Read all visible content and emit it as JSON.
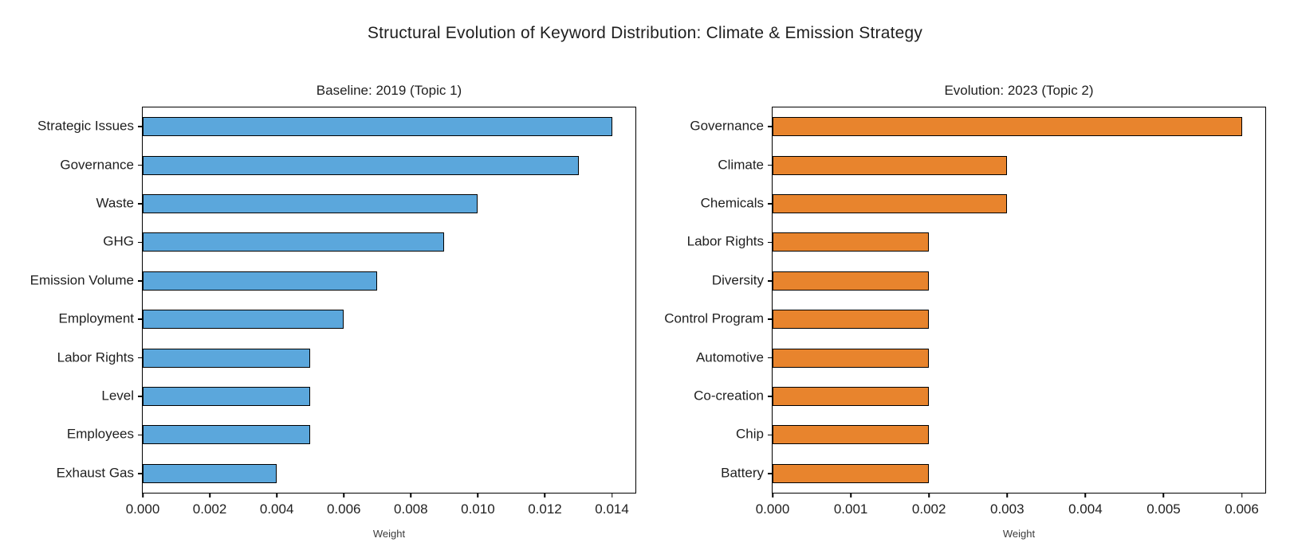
{
  "page_title": "Structural Evolution of Keyword Distribution: Climate & Emission Strategy",
  "chart_data": [
    {
      "type": "bar",
      "orientation": "horizontal",
      "title": "Baseline: 2019 (Topic 1)",
      "categories": [
        "Strategic Issues",
        "Governance",
        "Waste",
        "GHG",
        "Emission Volume",
        "Employment",
        "Labor Rights",
        "Level",
        "Employees",
        "Exhaust Gas"
      ],
      "values": [
        0.014,
        0.013,
        0.01,
        0.009,
        0.007,
        0.006,
        0.005,
        0.005,
        0.005,
        0.004
      ],
      "xlabel": "Weight",
      "xlim": [
        0,
        0.0147
      ],
      "xticks": [
        0,
        0.002,
        0.004,
        0.006,
        0.008,
        0.01,
        0.012,
        0.014
      ],
      "xtick_labels": [
        "0.000",
        "0.002",
        "0.004",
        "0.006",
        "0.008",
        "0.010",
        "0.012",
        "0.014"
      ],
      "bar_color": "#5BA7DC",
      "bar_edge_color": "#000000",
      "grid": false,
      "legend": false
    },
    {
      "type": "bar",
      "orientation": "horizontal",
      "title": "Evolution: 2023 (Topic 2)",
      "categories": [
        "Governance",
        "Climate",
        "Chemicals",
        "Labor Rights",
        "Diversity",
        "Control Program",
        "Automotive",
        "Co-creation",
        "Chip",
        "Battery"
      ],
      "values": [
        0.006,
        0.003,
        0.003,
        0.002,
        0.002,
        0.002,
        0.002,
        0.002,
        0.002,
        0.002
      ],
      "xlabel": "Weight",
      "xlim": [
        0,
        0.0063
      ],
      "xticks": [
        0,
        0.001,
        0.002,
        0.003,
        0.004,
        0.005,
        0.006
      ],
      "xtick_labels": [
        "0.000",
        "0.001",
        "0.002",
        "0.003",
        "0.004",
        "0.005",
        "0.006"
      ],
      "bar_color": "#E8842D",
      "bar_edge_color": "#000000",
      "grid": false,
      "legend": false
    }
  ]
}
